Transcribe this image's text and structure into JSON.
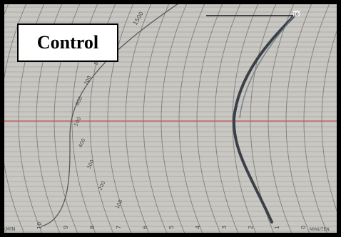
{
  "label": {
    "text": "Control"
  },
  "scale": {
    "marks": [
      "100",
      "200",
      "300",
      "400",
      "500",
      "600",
      "700",
      "800"
    ],
    "top_mark": "1500",
    "corner_mark": "10",
    "bottom_numbers": [
      "0",
      "1",
      "2",
      "3",
      "4",
      "5",
      "6",
      "7",
      "8",
      "9",
      "10"
    ],
    "bottom_left": "MIN",
    "bottom_right": "MINUTEN"
  },
  "colors": {
    "paper": "#c9c7c2",
    "grid": "#6f6e6b",
    "center_line": "#c25a55",
    "trace": "#3b4048",
    "rule": "#1a1a1a"
  }
}
